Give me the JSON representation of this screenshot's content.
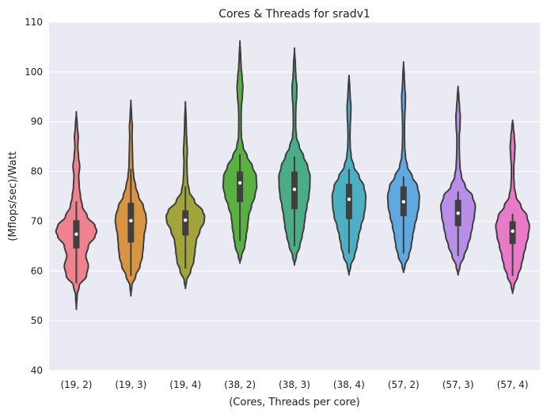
{
  "chart_data": {
    "type": "violin",
    "title": "Cores & Threads for sradv1",
    "xlabel": "(Cores, Threads per core)",
    "ylabel": "(Mflops/sec)/Watt",
    "ylim": [
      40,
      110
    ],
    "yticks": [
      40,
      50,
      60,
      70,
      80,
      90,
      100,
      110
    ],
    "grid": true,
    "categories": [
      "(19, 2)",
      "(19, 3)",
      "(19, 4)",
      "(38, 2)",
      "(38, 3)",
      "(38, 4)",
      "(57, 2)",
      "(57, 3)",
      "(57, 4)"
    ],
    "series": [
      {
        "name": "(19, 2)",
        "color": "#f0818e",
        "min": 52.3,
        "max": 92.0,
        "q1": 64.5,
        "median": 67.4,
        "q3": 70.2,
        "whisker_low": 57.5,
        "whisker_high": 74.0,
        "profile": [
          [
            52.3,
            0
          ],
          [
            55,
            0.03
          ],
          [
            57,
            0.12
          ],
          [
            59,
            0.42
          ],
          [
            61,
            0.5
          ],
          [
            63,
            0.4
          ],
          [
            65,
            0.5
          ],
          [
            67,
            0.78
          ],
          [
            68,
            0.85
          ],
          [
            69,
            0.78
          ],
          [
            71,
            0.45
          ],
          [
            73,
            0.25
          ],
          [
            75,
            0.17
          ],
          [
            77,
            0.12
          ],
          [
            79,
            0.1
          ],
          [
            81,
            0.14
          ],
          [
            83,
            0.09
          ],
          [
            85,
            0.06
          ],
          [
            87,
            0.08
          ],
          [
            89,
            0.04
          ],
          [
            92,
            0
          ]
        ]
      },
      {
        "name": "(19, 3)",
        "color": "#d99443",
        "min": 55.0,
        "max": 94.3,
        "q1": 65.7,
        "median": 70.1,
        "q3": 73.7,
        "whisker_low": 59.0,
        "whisker_high": 80.5,
        "profile": [
          [
            55,
            0
          ],
          [
            57,
            0.04
          ],
          [
            59,
            0.2
          ],
          [
            61,
            0.38
          ],
          [
            63,
            0.48
          ],
          [
            65,
            0.52
          ],
          [
            67,
            0.55
          ],
          [
            69,
            0.62
          ],
          [
            70,
            0.65
          ],
          [
            71,
            0.63
          ],
          [
            73,
            0.52
          ],
          [
            75,
            0.32
          ],
          [
            77,
            0.2
          ],
          [
            79,
            0.12
          ],
          [
            81,
            0.08
          ],
          [
            83,
            0.07
          ],
          [
            85,
            0.06
          ],
          [
            87,
            0.05
          ],
          [
            89,
            0.06
          ],
          [
            91,
            0.03
          ],
          [
            94.3,
            0
          ]
        ]
      },
      {
        "name": "(19, 4)",
        "color": "#a2a33a",
        "min": 56.5,
        "max": 94.0,
        "q1": 67.1,
        "median": 70.2,
        "q3": 72.2,
        "whisker_low": 60.5,
        "whisker_high": 77.0,
        "profile": [
          [
            56.5,
            0
          ],
          [
            58,
            0.05
          ],
          [
            60,
            0.22
          ],
          [
            62,
            0.35
          ],
          [
            64,
            0.4
          ],
          [
            66,
            0.45
          ],
          [
            68,
            0.6
          ],
          [
            70,
            0.78
          ],
          [
            71,
            0.8
          ],
          [
            72,
            0.72
          ],
          [
            74,
            0.38
          ],
          [
            76,
            0.16
          ],
          [
            78,
            0.09
          ],
          [
            80,
            0.07
          ],
          [
            82,
            0.06
          ],
          [
            84,
            0.08
          ],
          [
            86,
            0.06
          ],
          [
            88,
            0.04
          ],
          [
            90,
            0.03
          ],
          [
            94,
            0
          ]
        ]
      },
      {
        "name": "(38, 2)",
        "color": "#5ab041",
        "min": 61.6,
        "max": 106.2,
        "q1": 73.8,
        "median": 77.7,
        "q3": 80.0,
        "whisker_low": 66.0,
        "whisker_high": 83.5,
        "profile": [
          [
            61.6,
            0
          ],
          [
            63,
            0.07
          ],
          [
            65,
            0.2
          ],
          [
            67,
            0.26
          ],
          [
            69,
            0.32
          ],
          [
            71,
            0.36
          ],
          [
            73,
            0.48
          ],
          [
            75,
            0.62
          ],
          [
            77,
            0.7
          ],
          [
            79,
            0.68
          ],
          [
            81,
            0.52
          ],
          [
            83,
            0.3
          ],
          [
            85,
            0.13
          ],
          [
            87,
            0.06
          ],
          [
            89,
            0.05
          ],
          [
            91,
            0.05
          ],
          [
            93,
            0.06
          ],
          [
            95,
            0.1
          ],
          [
            97,
            0.12
          ],
          [
            99,
            0.09
          ],
          [
            101,
            0.05
          ],
          [
            103,
            0.03
          ],
          [
            106.2,
            0
          ]
        ]
      },
      {
        "name": "(38, 3)",
        "color": "#4aad87",
        "min": 61.2,
        "max": 104.8,
        "q1": 72.4,
        "median": 76.4,
        "q3": 80.0,
        "whisker_low": 65.0,
        "whisker_high": 83.0,
        "profile": [
          [
            61.2,
            0
          ],
          [
            63,
            0.08
          ],
          [
            65,
            0.22
          ],
          [
            67,
            0.32
          ],
          [
            69,
            0.4
          ],
          [
            71,
            0.45
          ],
          [
            73,
            0.52
          ],
          [
            75,
            0.6
          ],
          [
            77,
            0.64
          ],
          [
            79,
            0.65
          ],
          [
            81,
            0.55
          ],
          [
            83,
            0.38
          ],
          [
            85,
            0.2
          ],
          [
            87,
            0.08
          ],
          [
            89,
            0.05
          ],
          [
            91,
            0.05
          ],
          [
            93,
            0.06
          ],
          [
            95,
            0.09
          ],
          [
            97,
            0.1
          ],
          [
            99,
            0.06
          ],
          [
            101,
            0.04
          ],
          [
            104.8,
            0
          ]
        ]
      },
      {
        "name": "(38, 4)",
        "color": "#4db0c2",
        "min": 59.2,
        "max": 99.3,
        "q1": 70.4,
        "median": 74.4,
        "q3": 77.5,
        "whisker_low": 63.5,
        "whisker_high": 80.5,
        "profile": [
          [
            59.2,
            0
          ],
          [
            61,
            0.07
          ],
          [
            63,
            0.23
          ],
          [
            65,
            0.33
          ],
          [
            67,
            0.4
          ],
          [
            69,
            0.5
          ],
          [
            71,
            0.62
          ],
          [
            73,
            0.68
          ],
          [
            75,
            0.7
          ],
          [
            77,
            0.62
          ],
          [
            79,
            0.42
          ],
          [
            81,
            0.2
          ],
          [
            83,
            0.09
          ],
          [
            85,
            0.05
          ],
          [
            87,
            0.04
          ],
          [
            89,
            0.05
          ],
          [
            91,
            0.07
          ],
          [
            93,
            0.08
          ],
          [
            95,
            0.05
          ],
          [
            97,
            0.03
          ],
          [
            99.3,
            0
          ]
        ]
      },
      {
        "name": "(57, 2)",
        "color": "#5fa8e0",
        "min": 59.7,
        "max": 102.0,
        "q1": 71.0,
        "median": 73.9,
        "q3": 77.0,
        "whisker_low": 63.5,
        "whisker_high": 79.0,
        "profile": [
          [
            59.7,
            0
          ],
          [
            61,
            0.06
          ],
          [
            63,
            0.22
          ],
          [
            65,
            0.32
          ],
          [
            67,
            0.38
          ],
          [
            69,
            0.46
          ],
          [
            71,
            0.56
          ],
          [
            73,
            0.64
          ],
          [
            75,
            0.66
          ],
          [
            77,
            0.58
          ],
          [
            79,
            0.36
          ],
          [
            81,
            0.16
          ],
          [
            83,
            0.08
          ],
          [
            85,
            0.05
          ],
          [
            87,
            0.04
          ],
          [
            89,
            0.04
          ],
          [
            91,
            0.05
          ],
          [
            93,
            0.07
          ],
          [
            95,
            0.08
          ],
          [
            97,
            0.05
          ],
          [
            99,
            0.03
          ],
          [
            102,
            0
          ]
        ]
      },
      {
        "name": "(57, 3)",
        "color": "#b88fe8",
        "min": 59.2,
        "max": 97.1,
        "q1": 69.0,
        "median": 71.6,
        "q3": 74.3,
        "whisker_low": 63.0,
        "whisker_high": 76.0,
        "profile": [
          [
            59.2,
            0
          ],
          [
            61,
            0.08
          ],
          [
            63,
            0.25
          ],
          [
            65,
            0.4
          ],
          [
            67,
            0.52
          ],
          [
            69,
            0.6
          ],
          [
            71,
            0.68
          ],
          [
            73,
            0.72
          ],
          [
            75,
            0.6
          ],
          [
            77,
            0.3
          ],
          [
            79,
            0.14
          ],
          [
            81,
            0.08
          ],
          [
            83,
            0.06
          ],
          [
            85,
            0.05
          ],
          [
            87,
            0.05
          ],
          [
            89,
            0.08
          ],
          [
            91,
            0.09
          ],
          [
            93,
            0.06
          ],
          [
            95,
            0.03
          ],
          [
            97.1,
            0
          ]
        ]
      },
      {
        "name": "(57, 4)",
        "color": "#e87ac8",
        "min": 55.5,
        "max": 90.3,
        "q1": 65.4,
        "median": 68.0,
        "q3": 70.0,
        "whisker_low": 59.0,
        "whisker_high": 71.5,
        "profile": [
          [
            55.5,
            0
          ],
          [
            57,
            0.06
          ],
          [
            59,
            0.22
          ],
          [
            61,
            0.36
          ],
          [
            63,
            0.45
          ],
          [
            65,
            0.55
          ],
          [
            67,
            0.65
          ],
          [
            69,
            0.7
          ],
          [
            71,
            0.6
          ],
          [
            73,
            0.35
          ],
          [
            75,
            0.14
          ],
          [
            77,
            0.07
          ],
          [
            79,
            0.05
          ],
          [
            81,
            0.05
          ],
          [
            83,
            0.08
          ],
          [
            85,
            0.1
          ],
          [
            87,
            0.07
          ],
          [
            89,
            0.03
          ],
          [
            90.3,
            0
          ]
        ]
      }
    ]
  }
}
